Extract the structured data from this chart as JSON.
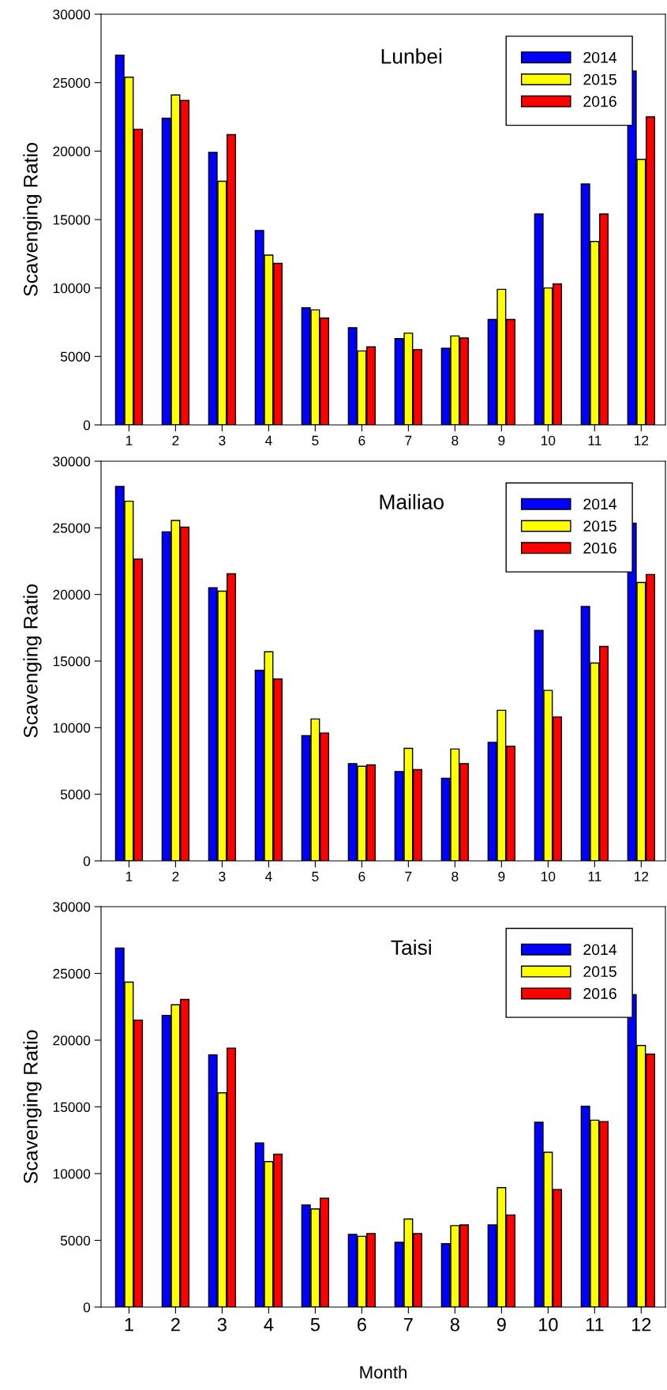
{
  "chart_data": [
    {
      "type": "bar",
      "title": "Lunbei",
      "ylabel": "Scavenging Ratio",
      "categories": [
        "1",
        "2",
        "3",
        "4",
        "5",
        "6",
        "7",
        "8",
        "9",
        "10",
        "11",
        "12"
      ],
      "series": [
        {
          "name": "2014",
          "color": "#0000ff",
          "values": [
            27000,
            22400,
            19900,
            14200,
            8550,
            7100,
            6300,
            5600,
            7700,
            15400,
            17600,
            25850
          ]
        },
        {
          "name": "2015",
          "color": "#ffff00",
          "values": [
            25400,
            24100,
            17800,
            12400,
            8400,
            5400,
            6700,
            6500,
            9900,
            10000,
            13400,
            19400
          ]
        },
        {
          "name": "2016",
          "color": "#ff0000",
          "values": [
            21600,
            23700,
            21200,
            11800,
            7800,
            5700,
            5500,
            6350,
            7700,
            10300,
            15400,
            22500
          ]
        }
      ],
      "ylim": [
        0,
        30000
      ],
      "yticks": [
        0,
        5000,
        10000,
        15000,
        20000,
        25000,
        30000
      ],
      "legend": "top right"
    },
    {
      "type": "bar",
      "title": "Mailiao",
      "ylabel": "Scavenging Ratio",
      "categories": [
        "1",
        "2",
        "3",
        "4",
        "5",
        "6",
        "7",
        "8",
        "9",
        "10",
        "11",
        "12"
      ],
      "series": [
        {
          "name": "2014",
          "color": "#0000ff",
          "values": [
            28100,
            24700,
            20500,
            14300,
            9400,
            7300,
            6700,
            6200,
            8900,
            17300,
            19100,
            25350
          ]
        },
        {
          "name": "2015",
          "color": "#ffff00",
          "values": [
            27000,
            25550,
            20250,
            15700,
            10650,
            7100,
            8450,
            8400,
            11300,
            12800,
            14850,
            20900
          ]
        },
        {
          "name": "2016",
          "color": "#ff0000",
          "values": [
            22650,
            25050,
            21550,
            13650,
            9600,
            7200,
            6850,
            7300,
            8600,
            10800,
            16100,
            21500
          ]
        }
      ],
      "ylim": [
        0,
        30000
      ],
      "yticks": [
        0,
        5000,
        10000,
        15000,
        20000,
        25000,
        30000
      ],
      "legend": "top right"
    },
    {
      "type": "bar",
      "title": "Taisi",
      "ylabel": "Scavenging Ratio",
      "xlabel": "Month",
      "categories": [
        "1",
        "2",
        "3",
        "4",
        "5",
        "6",
        "7",
        "8",
        "9",
        "10",
        "11",
        "12"
      ],
      "series": [
        {
          "name": "2014",
          "color": "#0000ff",
          "values": [
            26900,
            21850,
            18900,
            12300,
            7650,
            5450,
            4850,
            4750,
            6150,
            13850,
            15050,
            23400
          ]
        },
        {
          "name": "2015",
          "color": "#ffff00",
          "values": [
            24350,
            22650,
            16050,
            10900,
            7350,
            5300,
            6600,
            6100,
            8950,
            11600,
            14000,
            19600
          ]
        },
        {
          "name": "2016",
          "color": "#ff0000",
          "values": [
            21500,
            23050,
            19400,
            11450,
            8150,
            5500,
            5500,
            6150,
            6900,
            8800,
            13900,
            18950
          ]
        }
      ],
      "ylim": [
        0,
        30000
      ],
      "yticks": [
        0,
        5000,
        10000,
        15000,
        20000,
        25000,
        30000
      ],
      "legend": "top right"
    }
  ]
}
